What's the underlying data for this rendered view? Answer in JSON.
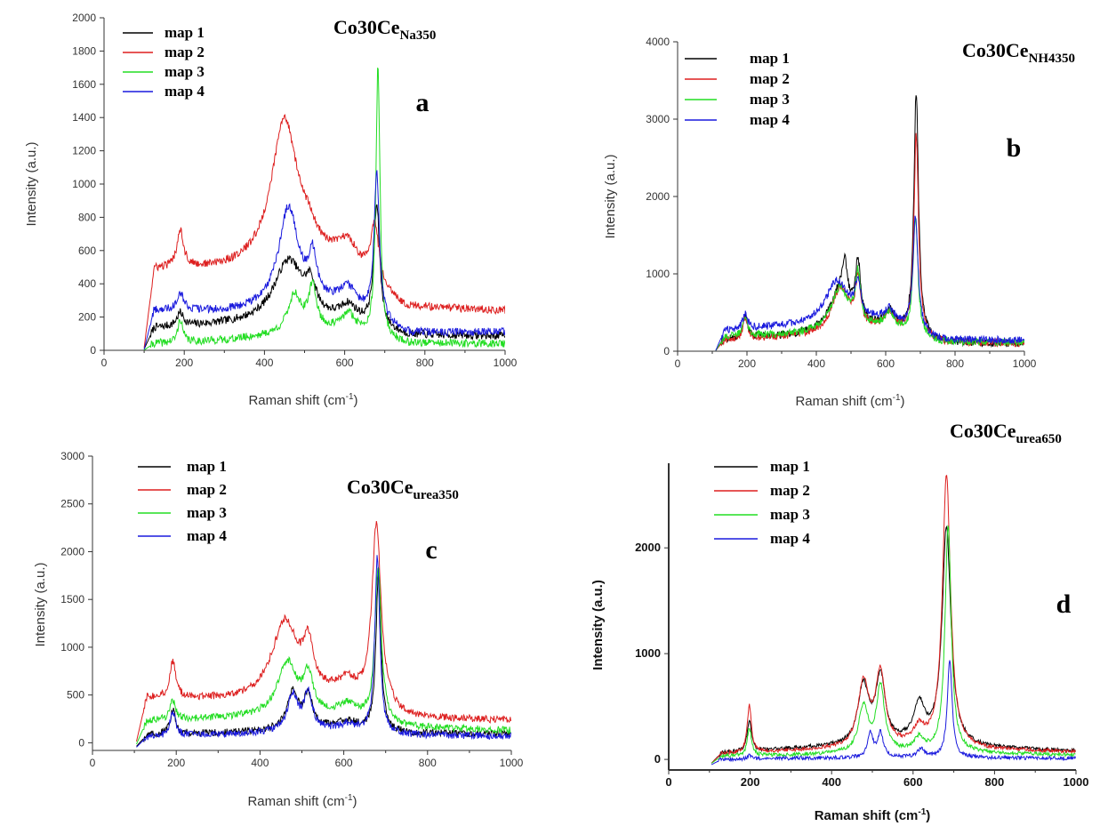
{
  "colors": {
    "map 1": "#000000",
    "map 2": "#dd1f1f",
    "map 3": "#22dd22",
    "map 4": "#1a1add"
  },
  "chart_data": [
    {
      "type": "line",
      "panel": "a",
      "title": "Co30Ce",
      "title_sub": "Na350",
      "xlabel": "Raman shift (cm",
      "xlabel_sup": "-1",
      "xlabel_end": ")",
      "ylabel": "Intensity (a.u.)",
      "xlim": [
        0,
        1000
      ],
      "ylim": [
        0,
        2000
      ],
      "xticks": [
        "0",
        "200",
        "400",
        "600",
        "800",
        "1000"
      ],
      "yticks": [
        "0",
        "200",
        "400",
        "600",
        "800",
        "1000",
        "1200",
        "1400",
        "1600",
        "1800",
        "2000"
      ],
      "legend": [
        "map 1",
        "map 2",
        "map 3",
        "map 4"
      ],
      "x_start": 100,
      "series": [
        {
          "name": "map 1",
          "baseline": [
            [
              100,
              0
            ],
            [
              125,
              130
            ],
            [
              300,
              150
            ],
            [
              600,
              160
            ],
            [
              750,
              85
            ],
            [
              1000,
              85
            ]
          ],
          "peaks": [
            [
              190,
              80,
              10
            ],
            [
              460,
              380,
              45
            ],
            [
              515,
              160,
              15
            ],
            [
              610,
              90,
              25
            ],
            [
              680,
              730,
              9
            ]
          ]
        },
        {
          "name": "map 2",
          "baseline": [
            [
              100,
              0
            ],
            [
              125,
              480
            ],
            [
              300,
              480
            ],
            [
              600,
              520
            ],
            [
              750,
              250
            ],
            [
              1000,
              235
            ]
          ],
          "peaks": [
            [
              190,
              230,
              10
            ],
            [
              450,
              880,
              40
            ],
            [
              510,
              100,
              25
            ],
            [
              610,
              110,
              30
            ],
            [
              675,
              350,
              12
            ]
          ]
        },
        {
          "name": "map 3",
          "baseline": [
            [
              100,
              0
            ],
            [
              125,
              40
            ],
            [
              300,
              60
            ],
            [
              600,
              130
            ],
            [
              750,
              40
            ],
            [
              1000,
              40
            ]
          ],
          "peaks": [
            [
              190,
              140,
              7
            ],
            [
              475,
              230,
              20
            ],
            [
              520,
              260,
              12
            ],
            [
              610,
              90,
              18
            ],
            [
              683,
              1630,
              6
            ]
          ]
        },
        {
          "name": "map 4",
          "baseline": [
            [
              100,
              0
            ],
            [
              125,
              240
            ],
            [
              300,
              230
            ],
            [
              600,
              280
            ],
            [
              750,
              100
            ],
            [
              1000,
              110
            ]
          ],
          "peaks": [
            [
              190,
              110,
              10
            ],
            [
              460,
              600,
              30
            ],
            [
              520,
              250,
              12
            ],
            [
              610,
              90,
              22
            ],
            [
              680,
              870,
              8
            ]
          ]
        }
      ]
    },
    {
      "type": "line",
      "panel": "b",
      "title": "Co30Ce",
      "title_sub": "NH4350",
      "xlabel": "Raman shift (cm",
      "xlabel_sup": "-1",
      "xlabel_end": ")",
      "ylabel": "Intensity (a.u.)",
      "xlim": [
        0,
        1000
      ],
      "ylim": [
        0,
        4000
      ],
      "xticks": [
        "0",
        "200",
        "400",
        "600",
        "800",
        "1000"
      ],
      "yticks": [
        "0",
        "1000",
        "2000",
        "3000",
        "4000"
      ],
      "legend": [
        "map 1",
        "map 2",
        "map 3",
        "map 4"
      ],
      "x_start": 110,
      "series": [
        {
          "name": "map 1",
          "baseline": [
            [
              110,
              0
            ],
            [
              135,
              150
            ],
            [
              350,
              200
            ],
            [
              600,
              300
            ],
            [
              750,
              110
            ],
            [
              1000,
              90
            ]
          ],
          "peaks": [
            [
              195,
              300,
              8
            ],
            [
              470,
              550,
              35
            ],
            [
              482,
              450,
              8
            ],
            [
              520,
              750,
              9
            ],
            [
              612,
              200,
              15
            ],
            [
              688,
              3150,
              8
            ]
          ]
        },
        {
          "name": "map 2",
          "baseline": [
            [
              110,
              0
            ],
            [
              135,
              140
            ],
            [
              350,
              190
            ],
            [
              600,
              290
            ],
            [
              750,
              110
            ],
            [
              1000,
              100
            ]
          ],
          "peaks": [
            [
              195,
              280,
              8
            ],
            [
              470,
              580,
              30
            ],
            [
              520,
              580,
              9
            ],
            [
              612,
              200,
              15
            ],
            [
              688,
              2600,
              8
            ]
          ]
        },
        {
          "name": "map 3",
          "baseline": [
            [
              110,
              0
            ],
            [
              135,
              180
            ],
            [
              350,
              220
            ],
            [
              600,
              300
            ],
            [
              750,
              120
            ],
            [
              1000,
              110
            ]
          ],
          "peaks": [
            [
              195,
              280,
              8
            ],
            [
              468,
              560,
              30
            ],
            [
              520,
              650,
              9
            ],
            [
              612,
              200,
              15
            ],
            [
              686,
              1550,
              8
            ]
          ]
        },
        {
          "name": "map 4",
          "baseline": [
            [
              110,
              0
            ],
            [
              135,
              260
            ],
            [
              350,
              330
            ],
            [
              600,
              380
            ],
            [
              750,
              140
            ],
            [
              1000,
              140
            ]
          ],
          "peaks": [
            [
              195,
              200,
              8
            ],
            [
              460,
              550,
              40
            ],
            [
              520,
              430,
              10
            ],
            [
              612,
              150,
              15
            ],
            [
              686,
              1500,
              9
            ]
          ]
        }
      ]
    },
    {
      "type": "line",
      "panel": "c",
      "title": "Co30Ce",
      "title_sub": "urea350",
      "xlabel": "Raman shift (cm",
      "xlabel_sup": "-1",
      "xlabel_end": ")",
      "ylabel": "Intensity (a.u.)",
      "xlim": [
        0,
        1000
      ],
      "ylim": [
        -80,
        3000
      ],
      "xticks": [
        "0",
        "200",
        "400",
        "600",
        "800",
        "1000"
      ],
      "yticks": [
        "0",
        "500",
        "1000",
        "1500",
        "2000",
        "2500",
        "3000"
      ],
      "legend": [
        "map 1",
        "map 2",
        "map 3",
        "map 4"
      ],
      "x_start": 105,
      "series": [
        {
          "name": "map 1",
          "baseline": [
            [
              105,
              -40
            ],
            [
              130,
              80
            ],
            [
              350,
              110
            ],
            [
              600,
              170
            ],
            [
              750,
              100
            ],
            [
              1000,
              90
            ]
          ],
          "peaks": [
            [
              192,
              250,
              8
            ],
            [
              478,
              400,
              15
            ],
            [
              515,
              350,
              12
            ],
            [
              610,
              60,
              18
            ],
            [
              683,
              1680,
              7
            ]
          ]
        },
        {
          "name": "map 2",
          "baseline": [
            [
              105,
              0
            ],
            [
              130,
              470
            ],
            [
              350,
              440
            ],
            [
              600,
              500
            ],
            [
              750,
              260
            ],
            [
              1000,
              230
            ]
          ],
          "peaks": [
            [
              192,
              390,
              8
            ],
            [
              460,
              800,
              38
            ],
            [
              515,
              440,
              13
            ],
            [
              610,
              120,
              22
            ],
            [
              678,
              1900,
              13
            ]
          ]
        },
        {
          "name": "map 3",
          "baseline": [
            [
              105,
              -20
            ],
            [
              130,
              230
            ],
            [
              350,
              260
            ],
            [
              600,
              300
            ],
            [
              750,
              160
            ],
            [
              1000,
              130
            ]
          ],
          "peaks": [
            [
              192,
              200,
              8
            ],
            [
              465,
              560,
              28
            ],
            [
              515,
              380,
              13
            ],
            [
              610,
              100,
              20
            ],
            [
              682,
              1620,
              9
            ]
          ]
        },
        {
          "name": "map 4",
          "baseline": [
            [
              105,
              -50
            ],
            [
              130,
              60
            ],
            [
              350,
              90
            ],
            [
              600,
              140
            ],
            [
              750,
              80
            ],
            [
              1000,
              70
            ]
          ],
          "peaks": [
            [
              192,
              240,
              8
            ],
            [
              478,
              380,
              15
            ],
            [
              515,
              380,
              12
            ],
            [
              610,
              50,
              18
            ],
            [
              680,
              1830,
              7
            ]
          ]
        }
      ]
    },
    {
      "type": "line",
      "panel": "d",
      "title": "Co30Ce",
      "title_sub": "urea650",
      "xlabel": "Raman shift (cm",
      "xlabel_sup": "-1",
      "xlabel_end": ")",
      "ylabel": "Intensity (a.u.)",
      "xlim": [
        0,
        1000
      ],
      "ylim": [
        -100,
        2800
      ],
      "xticks": [
        "0",
        "200",
        "400",
        "600",
        "800",
        "1000"
      ],
      "yticks": [
        "0",
        "1000",
        "2000"
      ],
      "legend": [
        "map 1",
        "map 2",
        "map 3",
        "map 4"
      ],
      "x_start": 105,
      "series": [
        {
          "name": "map 1",
          "baseline": [
            [
              105,
              -40
            ],
            [
              130,
              60
            ],
            [
              300,
              100
            ],
            [
              600,
              150
            ],
            [
              750,
              110
            ],
            [
              1000,
              80
            ]
          ],
          "peaks": [
            [
              198,
              300,
              6
            ],
            [
              478,
              550,
              16
            ],
            [
              520,
              620,
              14
            ],
            [
              615,
              350,
              16
            ],
            [
              682,
              2050,
              13
            ]
          ]
        },
        {
          "name": "map 2",
          "baseline": [
            [
              105,
              -40
            ],
            [
              130,
              50
            ],
            [
              300,
              80
            ],
            [
              600,
              120
            ],
            [
              750,
              90
            ],
            [
              1000,
              70
            ]
          ],
          "peaks": [
            [
              198,
              450,
              6
            ],
            [
              478,
              600,
              16
            ],
            [
              520,
              680,
              14
            ],
            [
              615,
              150,
              16
            ],
            [
              682,
              2580,
              12
            ]
          ]
        },
        {
          "name": "map 3",
          "baseline": [
            [
              105,
              -40
            ],
            [
              130,
              30
            ],
            [
              300,
              40
            ],
            [
              600,
              70
            ],
            [
              750,
              60
            ],
            [
              1000,
              40
            ]
          ],
          "peaks": [
            [
              198,
              260,
              6
            ],
            [
              478,
              430,
              14
            ],
            [
              520,
              620,
              12
            ],
            [
              615,
              120,
              14
            ],
            [
              686,
              2150,
              9
            ]
          ]
        },
        {
          "name": "map 4",
          "baseline": [
            [
              105,
              -50
            ],
            [
              130,
              0
            ],
            [
              300,
              10
            ],
            [
              600,
              20
            ],
            [
              750,
              15
            ],
            [
              1000,
              10
            ]
          ],
          "peaks": [
            [
              198,
              30,
              6
            ],
            [
              495,
              230,
              8
            ],
            [
              520,
              230,
              8
            ],
            [
              620,
              80,
              10
            ],
            [
              690,
              920,
              7
            ]
          ]
        }
      ]
    }
  ]
}
